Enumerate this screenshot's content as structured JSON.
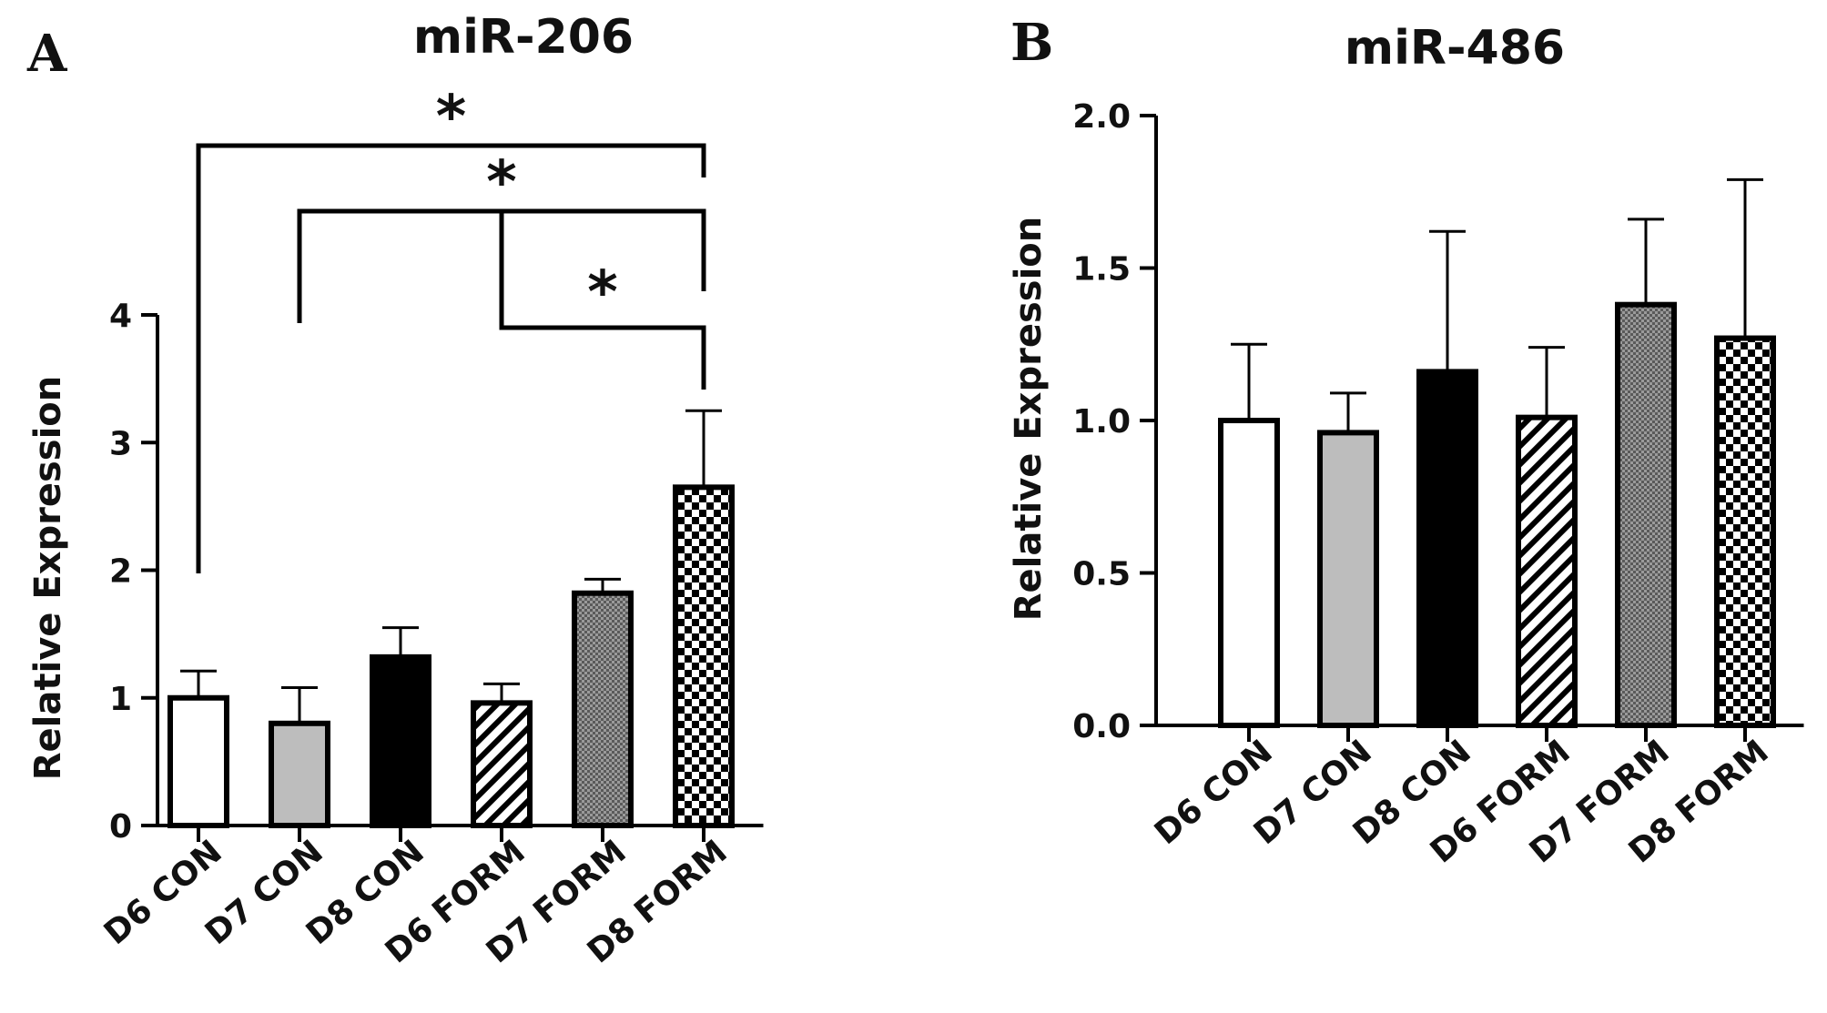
{
  "chart_data": [
    {
      "type": "bar",
      "panel_label": "A",
      "title": "miR-206",
      "xlabel": "",
      "ylabel": "Relative Expression",
      "categories": [
        "D6 CON",
        "D7 CON",
        "D8 CON",
        "D6 FORM",
        "D7 FORM",
        "D8 FORM"
      ],
      "values": [
        1.0,
        0.8,
        1.32,
        0.96,
        1.82,
        2.65
      ],
      "errors": [
        0.21,
        0.28,
        0.23,
        0.15,
        0.11,
        0.6
      ],
      "fills": [
        "white",
        "gray",
        "black",
        "diagonal-stripes",
        "fine-dots",
        "checker"
      ],
      "ylim": [
        0,
        4
      ],
      "yticks": [
        "0",
        "1",
        "2",
        "3",
        "4"
      ],
      "grid": false,
      "significance": [
        {
          "from": "D6 CON",
          "to": "D8 FORM",
          "label": "*"
        },
        {
          "from": "D7 CON",
          "to": "D8 FORM",
          "label": "*"
        },
        {
          "from": "D6 FORM",
          "to": "D8 FORM",
          "label": "*"
        }
      ]
    },
    {
      "type": "bar",
      "panel_label": "B",
      "title": "miR-486",
      "xlabel": "",
      "ylabel": "Relative Expression",
      "categories": [
        "D6 CON",
        "D7 CON",
        "D8 CON",
        "D6 FORM",
        "D7 FORM",
        "D8 FORM"
      ],
      "values": [
        1.0,
        0.96,
        1.16,
        1.01,
        1.38,
        1.27
      ],
      "errors": [
        0.25,
        0.13,
        0.46,
        0.23,
        0.28,
        0.52
      ],
      "fills": [
        "white",
        "gray",
        "black",
        "diagonal-stripes",
        "fine-dots",
        "checker"
      ],
      "ylim": [
        0,
        2
      ],
      "yticks": [
        "0.0",
        "0.5",
        "1.0",
        "1.5",
        "2.0"
      ],
      "grid": false,
      "significance": []
    }
  ]
}
